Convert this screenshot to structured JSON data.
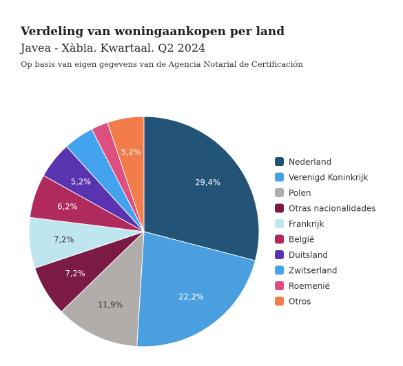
{
  "chart_data": {
    "type": "pie",
    "title": "Verdeling van woningaankopen per land",
    "subtitle": "Javea - Xàbia. Kwartaal. Q2 2024",
    "note": "Op basis van eigen gegevens van de Agencia Notarial de Certificación",
    "legend_position": "right",
    "slices": [
      {
        "name": "Nederland",
        "value": 29.4,
        "label": "29,4%",
        "color": "#245378"
      },
      {
        "name": "Verenigd Koninkrijk",
        "value": 22.2,
        "label": "22,2%",
        "color": "#4a9fe0"
      },
      {
        "name": "Polen",
        "value": 11.9,
        "label": "11,9%",
        "color": "#b0adab"
      },
      {
        "name": "Otras nacionalidades",
        "value": 7.2,
        "label": "7,2%",
        "color": "#7b1a45"
      },
      {
        "name": "Frankrijk",
        "value": 7.2,
        "label": "7,2%",
        "color": "#bfe6ef"
      },
      {
        "name": "België",
        "value": 6.2,
        "label": "6,2%",
        "color": "#b02a5b"
      },
      {
        "name": "Duitsland",
        "value": 5.2,
        "label": "5,2%",
        "color": "#5a33b0"
      },
      {
        "name": "Zwitserland",
        "value": 4.3,
        "label": "",
        "color": "#44a3ee"
      },
      {
        "name": "Roemenië",
        "value": 2.4,
        "label": "",
        "color": "#dc4f80"
      },
      {
        "name": "Otros",
        "value": 5.2,
        "label": "5,2%",
        "color": "#f27c4a"
      }
    ]
  }
}
